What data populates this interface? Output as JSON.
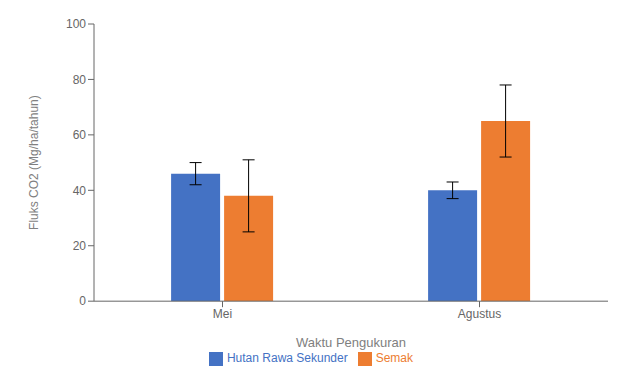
{
  "chart_data": {
    "type": "bar",
    "categories": [
      "Mei",
      "Agustus"
    ],
    "series": [
      {
        "name": "Hutan Rawa Sekunder",
        "values": [
          46,
          40
        ],
        "errors": [
          4,
          3
        ],
        "color": "#4472C4"
      },
      {
        "name": "Semak",
        "values": [
          38,
          65
        ],
        "errors": [
          13,
          13
        ],
        "color": "#ED7D31"
      }
    ],
    "xlabel": "Waktu Pengukuran",
    "ylabel": "Fluks CO2 (Mg/ha/tahun)",
    "ylim": [
      0,
      100
    ],
    "yticks": [
      0,
      20,
      40,
      60,
      80,
      100
    ],
    "grid": false,
    "legend": "bottom"
  }
}
